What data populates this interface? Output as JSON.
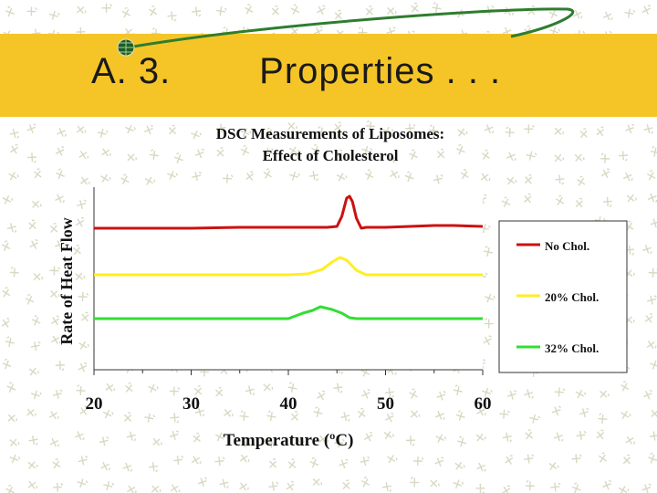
{
  "slide": {
    "title": "A. 3.        Properties . . ."
  },
  "colors": {
    "band": "#f5c528",
    "pattern": "#d7d9c2",
    "deco_line": "#2e7d2e"
  },
  "chart_data": {
    "type": "line",
    "title": "DSC Measurements of Liposomes:",
    "subtitle": "Effect of Cholesterol",
    "xlabel": "Temperature (ºC)",
    "ylabel": "Rate of Heat Flow",
    "xlim": [
      20,
      60
    ],
    "x_ticks": [
      20,
      30,
      40,
      50,
      60
    ],
    "x_tick_labels": [
      "20",
      "30",
      "40",
      "50",
      "60"
    ],
    "ylim": [
      0,
      1
    ],
    "grid": false,
    "legend_position": "right",
    "series": [
      {
        "name": "No Chol.",
        "color": "#cc1111",
        "points": [
          [
            20,
            0.775
          ],
          [
            30,
            0.775
          ],
          [
            35,
            0.78
          ],
          [
            40,
            0.78
          ],
          [
            44,
            0.78
          ],
          [
            45,
            0.785
          ],
          [
            45.5,
            0.84
          ],
          [
            46,
            0.94
          ],
          [
            46.3,
            0.95
          ],
          [
            46.6,
            0.92
          ],
          [
            47,
            0.83
          ],
          [
            47.5,
            0.775
          ],
          [
            48,
            0.78
          ],
          [
            50,
            0.78
          ],
          [
            55,
            0.79
          ],
          [
            57,
            0.79
          ],
          [
            60,
            0.785
          ]
        ]
      },
      {
        "name": "20% Chol.",
        "color": "#ffee22",
        "points": [
          [
            20,
            0.52
          ],
          [
            40,
            0.52
          ],
          [
            42,
            0.525
          ],
          [
            43.5,
            0.55
          ],
          [
            44.5,
            0.59
          ],
          [
            45.3,
            0.615
          ],
          [
            46,
            0.6
          ],
          [
            47,
            0.545
          ],
          [
            48,
            0.52
          ],
          [
            60,
            0.52
          ]
        ]
      },
      {
        "name": "32% Chol.",
        "color": "#33dd33",
        "points": [
          [
            20,
            0.28
          ],
          [
            40,
            0.28
          ],
          [
            40.5,
            0.29
          ],
          [
            41.5,
            0.31
          ],
          [
            42.5,
            0.325
          ],
          [
            43.3,
            0.345
          ],
          [
            44.5,
            0.33
          ],
          [
            45.5,
            0.31
          ],
          [
            46.3,
            0.285
          ],
          [
            47,
            0.28
          ],
          [
            60,
            0.28
          ]
        ]
      }
    ]
  }
}
